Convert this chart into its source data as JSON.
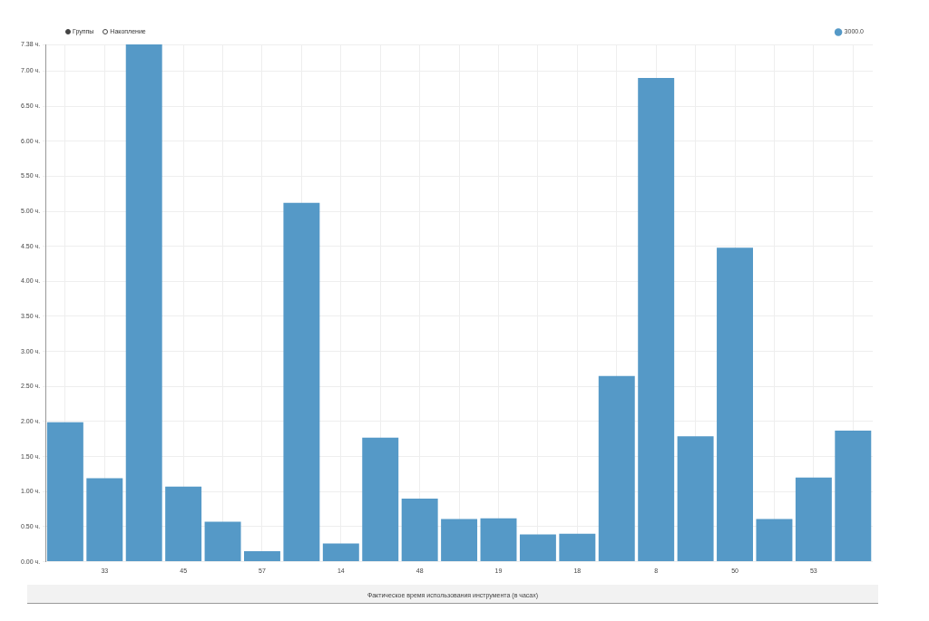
{
  "chart_data": {
    "type": "bar",
    "xlabel": "Фактическое время использования инструмента (в часах)",
    "annotations": [
      "Группы",
      "Накопление"
    ],
    "categories": [
      null,
      "33",
      null,
      "45",
      null,
      "57",
      null,
      "14",
      null,
      "48",
      null,
      "19",
      null,
      "18",
      null,
      "8",
      null,
      "50",
      null,
      "53",
      null
    ],
    "series": [
      {
        "name": "3000.0",
        "color": "#5599c7",
        "values": [
          1.99,
          1.19,
          7.38,
          1.07,
          0.57,
          0.15,
          5.12,
          0.26,
          1.77,
          0.9,
          0.61,
          0.62,
          0.39,
          0.4,
          2.65,
          6.9,
          1.79,
          4.48,
          0.61,
          1.2,
          1.87
        ]
      }
    ],
    "ylim": [
      0,
      7.38
    ],
    "yticks": [
      {
        "value": 0,
        "label": "0.00 ч."
      },
      {
        "value": 0.5,
        "label": "0.50 ч."
      },
      {
        "value": 1,
        "label": "1.00 ч."
      },
      {
        "value": 1.5,
        "label": "1.50 ч."
      },
      {
        "value": 2,
        "label": "2.00 ч."
      },
      {
        "value": 2.5,
        "label": "2.50 ч."
      },
      {
        "value": 3,
        "label": "3.00 ч."
      },
      {
        "value": 3.5,
        "label": "3.50 ч."
      },
      {
        "value": 4,
        "label": "4.00 ч."
      },
      {
        "value": 4.5,
        "label": "4.50 ч."
      },
      {
        "value": 5,
        "label": "5.00 ч."
      },
      {
        "value": 5.5,
        "label": "5.50 ч."
      },
      {
        "value": 6,
        "label": "6.00 ч."
      },
      {
        "value": 6.5,
        "label": "6.50 ч."
      },
      {
        "value": 7,
        "label": "7.00 ч."
      },
      {
        "value": 7.38,
        "label": "7.38 ч."
      }
    ],
    "grid": true,
    "legend": "top right"
  }
}
